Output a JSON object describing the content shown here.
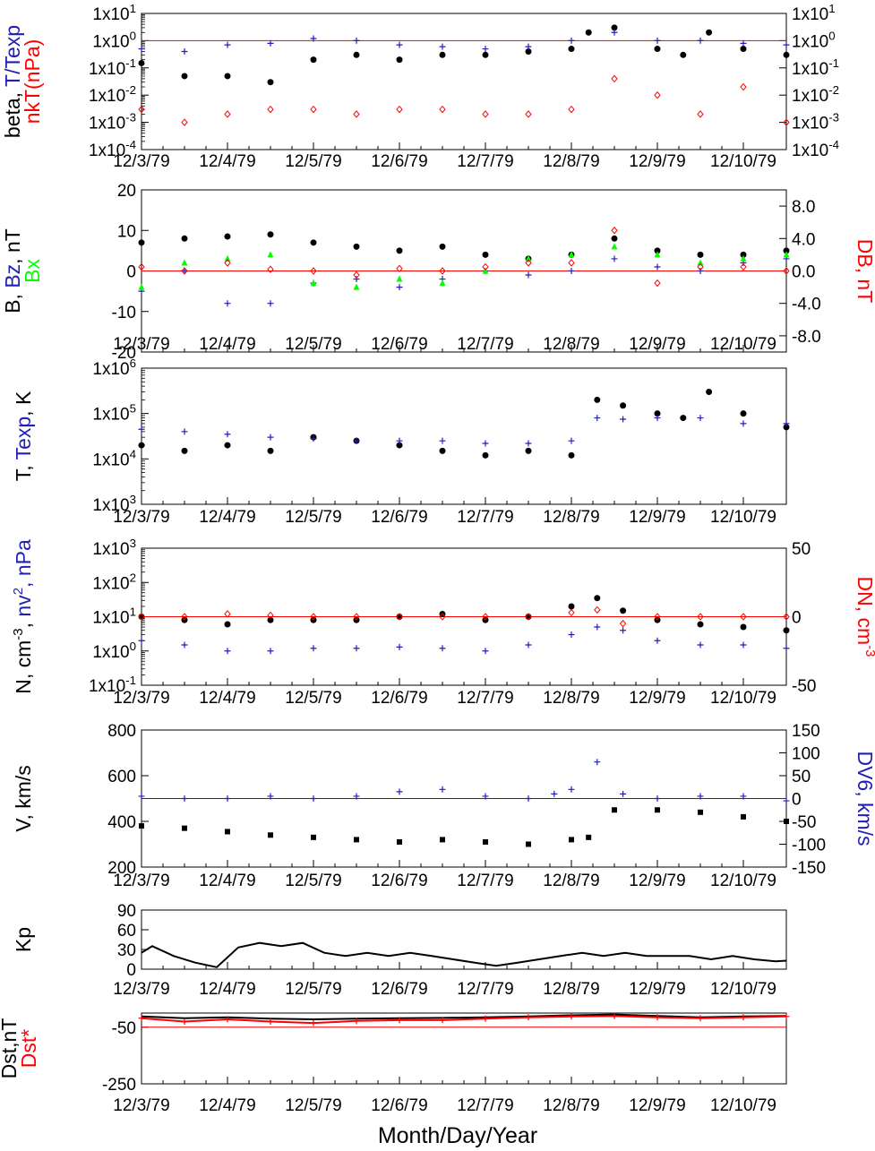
{
  "xaxis": {
    "ticks": [
      "12/3/79",
      "12/4/79",
      "12/5/79",
      "12/6/79",
      "12/7/79",
      "12/8/79",
      "12/9/79",
      "12/10/79"
    ],
    "label": "Month/Day/Year"
  },
  "colors": {
    "black": "#000000",
    "blue": "#1f1fb4",
    "red": "#ff0000",
    "green": "#00ff00"
  },
  "chart_data": [
    {
      "type": "scatter",
      "yscale": "log",
      "ylim": [
        0.0001,
        10
      ],
      "left_ticks": [
        "1x10^1",
        "1x10^0",
        "1x10^-1",
        "1x10^-2",
        "1x10^-3",
        "1x10^-4"
      ],
      "right_ticks": [
        "1x10^1",
        "1x10^0",
        "1x10^-1",
        "1x10^-2",
        "1x10^-3",
        "1x10^-4"
      ],
      "left_label": [
        {
          "text": "beta, ",
          "color": "black"
        },
        {
          "text": "T/Texp",
          "color": "blue"
        }
      ],
      "left_label2": [
        {
          "text": "nkT(nPa)",
          "color": "red"
        }
      ],
      "reference_line": {
        "y": 1,
        "color": "red"
      },
      "series": [
        {
          "marker": "dot",
          "color": "black",
          "x": [
            0,
            0.5,
            1,
            1.5,
            2,
            2.5,
            3,
            3.5,
            4,
            4.5,
            5,
            5.2,
            5.5,
            6,
            6.3,
            6.6,
            7,
            7.5
          ],
          "y": [
            0.15,
            0.05,
            0.05,
            0.03,
            0.2,
            0.3,
            0.2,
            0.3,
            0.3,
            0.4,
            0.5,
            2,
            3,
            0.5,
            0.3,
            2,
            0.5,
            0.3
          ]
        },
        {
          "marker": "plus",
          "color": "blue",
          "x": [
            0,
            0.5,
            1,
            1.5,
            2,
            2.5,
            3,
            3.5,
            4,
            4.5,
            5,
            5.5,
            6,
            6.5,
            7,
            7.5
          ],
          "y": [
            0.5,
            0.4,
            0.7,
            0.8,
            1.2,
            1,
            0.7,
            0.6,
            0.5,
            0.6,
            1,
            2,
            1,
            1,
            0.8,
            0.7
          ]
        },
        {
          "marker": "diamond",
          "color": "red",
          "x": [
            0,
            0.5,
            1,
            1.5,
            2,
            2.5,
            3,
            3.5,
            4,
            4.5,
            5,
            5.5,
            6,
            6.5,
            7,
            7.5
          ],
          "y": [
            0.003,
            0.001,
            0.002,
            0.003,
            0.003,
            0.002,
            0.003,
            0.003,
            0.002,
            0.002,
            0.003,
            0.04,
            0.01,
            0.002,
            0.02,
            0.001
          ]
        }
      ]
    },
    {
      "type": "scatter",
      "ylim": [
        -20,
        20
      ],
      "left_ticks": [
        "20",
        "10",
        "0",
        "-10",
        "-20"
      ],
      "right_ylim": [
        -10,
        10
      ],
      "right_ticks": [
        "8.0",
        "4.0",
        "0.0",
        "-4.0",
        "-8.0"
      ],
      "left_label": [
        {
          "text": "B, ",
          "color": "black"
        },
        {
          "text": "Bz",
          "color": "blue"
        },
        {
          "text": ", nT",
          "color": "black"
        }
      ],
      "left_label2": [
        {
          "text": "Bx",
          "color": "green"
        }
      ],
      "right_label": [
        {
          "text": "DB, nT",
          "color": "red"
        }
      ],
      "reference_line": {
        "y": 0,
        "color": "red"
      },
      "series": [
        {
          "marker": "dot",
          "color": "black",
          "x": [
            0,
            0.5,
            1,
            1.5,
            2,
            2.5,
            3,
            3.5,
            4,
            4.5,
            5,
            5.5,
            6,
            6.5,
            7,
            7.5
          ],
          "y": [
            7,
            8,
            8.5,
            9,
            7,
            6,
            5,
            6,
            4,
            3,
            4,
            8,
            5,
            4,
            4,
            5
          ]
        },
        {
          "marker": "plus",
          "color": "blue",
          "x": [
            0,
            0.5,
            1,
            1.5,
            2,
            2.5,
            3,
            3.5,
            4,
            4.5,
            5,
            5.5,
            6,
            6.5,
            7,
            7.5
          ],
          "y": [
            -5,
            0,
            -8,
            -8,
            -3,
            -2,
            -4,
            -2,
            0,
            -1,
            0,
            3,
            1,
            0,
            2,
            3
          ]
        },
        {
          "marker": "triangle",
          "color": "green",
          "x": [
            0,
            0.5,
            1,
            1.5,
            2,
            2.5,
            3,
            3.5,
            4,
            4.5,
            5,
            5.5,
            6,
            6.5,
            7,
            7.5
          ],
          "y": [
            -4,
            2,
            3,
            4,
            -3,
            -4,
            -2,
            -3,
            0,
            3,
            4,
            6,
            4,
            2,
            3,
            4
          ]
        },
        {
          "marker": "diamond",
          "color": "red",
          "x": [
            0,
            0.5,
            1,
            1.5,
            2,
            2.5,
            3,
            3.5,
            4,
            4.5,
            5,
            5.5,
            6,
            6.5,
            7,
            7.5
          ],
          "y": [
            0.5,
            0,
            1,
            0.2,
            0,
            -0.5,
            0.3,
            0,
            0.5,
            1,
            1,
            5,
            -1.5,
            0.5,
            0.5,
            0
          ]
        }
      ]
    },
    {
      "type": "scatter",
      "yscale": "log",
      "ylim": [
        1000,
        1000000
      ],
      "left_ticks": [
        "1x10^6",
        "1x10^5",
        "1x10^4",
        "1x10^3"
      ],
      "left_label": [
        {
          "text": "T, ",
          "color": "black"
        },
        {
          "text": "Texp",
          "color": "blue"
        },
        {
          "text": ", K",
          "color": "black"
        }
      ],
      "series": [
        {
          "marker": "dot",
          "color": "black",
          "x": [
            0,
            0.5,
            1,
            1.5,
            2,
            2.5,
            3,
            3.5,
            4,
            4.5,
            5,
            5.3,
            5.6,
            6,
            6.3,
            6.6,
            7,
            7.5
          ],
          "y": [
            20000,
            15000,
            20000,
            15000,
            30000,
            25000,
            20000,
            15000,
            12000,
            15000,
            12000,
            200000,
            150000,
            100000,
            80000,
            300000,
            100000,
            50000
          ]
        },
        {
          "marker": "plus",
          "color": "blue",
          "x": [
            0,
            0.5,
            1,
            1.5,
            2,
            2.5,
            3,
            3.5,
            4,
            4.5,
            5,
            5.3,
            5.6,
            6,
            6.5,
            7,
            7.5
          ],
          "y": [
            45000,
            40000,
            35000,
            30000,
            28000,
            25000,
            25000,
            25000,
            22000,
            22000,
            25000,
            80000,
            75000,
            80000,
            80000,
            60000,
            60000
          ]
        }
      ]
    },
    {
      "type": "scatter",
      "yscale": "log",
      "ylim": [
        0.1,
        1000
      ],
      "left_ticks": [
        "1x10^3",
        "1x10^2",
        "1x10^1",
        "1x10^0",
        "1x10^-1"
      ],
      "right_ylim": [
        -50,
        50
      ],
      "right_ticks": [
        "50",
        "0",
        "-50"
      ],
      "left_label": [
        {
          "text": "N, cm",
          "color": "black"
        },
        {
          "text": "-3",
          "color": "black",
          "sup": true
        },
        {
          "text": ", ",
          "color": "black"
        },
        {
          "text": "nv",
          "color": "blue"
        },
        {
          "text": "2",
          "color": "blue",
          "sup": true
        },
        {
          "text": ", nPa",
          "color": "blue"
        }
      ],
      "right_label": [
        {
          "text": "DN, cm",
          "color": "red"
        },
        {
          "text": "-3",
          "color": "red",
          "sup": true
        }
      ],
      "reference_line": {
        "y": 10,
        "color": "red"
      },
      "series": [
        {
          "marker": "dot",
          "color": "black",
          "x": [
            0,
            0.5,
            1,
            1.5,
            2,
            2.5,
            3,
            3.5,
            4,
            4.5,
            5,
            5.3,
            5.6,
            6,
            6.5,
            7,
            7.5
          ],
          "y": [
            10,
            8,
            6,
            8,
            8,
            8,
            10,
            12,
            8,
            10,
            20,
            35,
            15,
            8,
            6,
            5,
            4
          ]
        },
        {
          "marker": "plus",
          "color": "blue",
          "x": [
            0,
            0.5,
            1,
            1.5,
            2,
            2.5,
            3,
            3.5,
            4,
            4.5,
            5,
            5.3,
            5.6,
            6,
            6.5,
            7,
            7.5
          ],
          "y": [
            2,
            1.5,
            1,
            1,
            1.2,
            1.2,
            1.3,
            1.2,
            1,
            1.5,
            3,
            5,
            4,
            2,
            1.5,
            1.5,
            1.2
          ]
        },
        {
          "marker": "diamond",
          "color": "red",
          "x": [
            0,
            0.5,
            1,
            1.5,
            2,
            2.5,
            3,
            3.5,
            4,
            4.5,
            5,
            5.3,
            5.6,
            6,
            6.5,
            7,
            7.5
          ],
          "y": [
            0,
            0,
            2,
            1,
            0,
            0,
            0,
            0,
            0,
            0,
            3,
            5,
            -5,
            0,
            0,
            0,
            0
          ]
        }
      ]
    },
    {
      "type": "scatter",
      "ylim": [
        200,
        800
      ],
      "left_ticks": [
        "800",
        "600",
        "400",
        "200"
      ],
      "right_ylim": [
        -150,
        150
      ],
      "right_ticks": [
        "150",
        "100",
        "50",
        "0",
        "-50",
        "-100",
        "-150"
      ],
      "left_label": [
        {
          "text": "V, km/s",
          "color": "black"
        }
      ],
      "right_label": [
        {
          "text": "DV6, km/s",
          "color": "blue"
        }
      ],
      "reference_line": {
        "y": 500,
        "color": "blue"
      },
      "series": [
        {
          "marker": "square",
          "color": "black",
          "x": [
            0,
            0.5,
            1,
            1.5,
            2,
            2.5,
            3,
            3.5,
            4,
            4.5,
            5,
            5.2,
            5.5,
            6,
            6.5,
            7,
            7.5
          ],
          "y": [
            380,
            370,
            355,
            340,
            330,
            320,
            310,
            320,
            310,
            300,
            320,
            330,
            450,
            450,
            440,
            420,
            400
          ]
        },
        {
          "marker": "plus",
          "color": "blue",
          "x": [
            0,
            0.5,
            1,
            1.5,
            2,
            2.5,
            3,
            3.5,
            4,
            4.5,
            4.8,
            5,
            5.3,
            5.6,
            6,
            6.5,
            7,
            7.5
          ],
          "y": [
            5,
            0,
            0,
            5,
            0,
            5,
            15,
            20,
            5,
            0,
            10,
            20,
            80,
            10,
            0,
            5,
            5,
            -5
          ]
        }
      ]
    },
    {
      "type": "line",
      "ylim": [
        0,
        90
      ],
      "left_ticks": [
        "90",
        "60",
        "30",
        "0"
      ],
      "left_label": [
        {
          "text": "Kp",
          "color": "black"
        }
      ],
      "series": [
        {
          "color": "black",
          "x": [
            0,
            0.125,
            0.375,
            0.625,
            0.875,
            1.125,
            1.375,
            1.625,
            1.875,
            2.125,
            2.375,
            2.625,
            2.875,
            3.125,
            3.375,
            3.625,
            3.875,
            4.125,
            4.375,
            4.625,
            4.875,
            5.125,
            5.375,
            5.625,
            5.875,
            6.125,
            6.375,
            6.625,
            6.875,
            7.125,
            7.375,
            7.5
          ],
          "y": [
            25,
            35,
            20,
            10,
            3,
            33,
            40,
            35,
            40,
            25,
            20,
            25,
            20,
            25,
            20,
            15,
            10,
            5,
            10,
            15,
            20,
            25,
            20,
            25,
            20,
            20,
            20,
            15,
            20,
            15,
            12,
            13
          ]
        }
      ]
    },
    {
      "type": "line",
      "ylim": [
        -250,
        0
      ],
      "left_ticks": [
        "-50",
        "-250"
      ],
      "left_label": [
        {
          "text": "Dst,nT",
          "color": "black"
        }
      ],
      "left_label2": [
        {
          "text": "Dst*",
          "color": "red"
        }
      ],
      "reference_lines": [
        {
          "y": 0,
          "color": "black"
        },
        {
          "y": -50,
          "color": "red"
        }
      ],
      "series": [
        {
          "color": "black",
          "x": [
            0,
            0.5,
            1,
            1.5,
            2,
            2.5,
            3,
            3.5,
            4,
            4.5,
            5,
            5.5,
            6,
            6.5,
            7,
            7.5
          ],
          "y": [
            -12,
            -18,
            -15,
            -20,
            -22,
            -20,
            -18,
            -17,
            -15,
            -12,
            -8,
            -5,
            -10,
            -15,
            -12,
            -10
          ]
        },
        {
          "marker": "plus",
          "color": "red",
          "x": [
            0,
            0.5,
            1,
            1.5,
            2,
            2.5,
            3,
            3.5,
            4,
            4.5,
            5,
            5.5,
            6,
            6.5,
            7,
            7.5
          ],
          "y": [
            -18,
            -30,
            -22,
            -30,
            -35,
            -28,
            -25,
            -25,
            -20,
            -15,
            -12,
            -10,
            -15,
            -18,
            -15,
            -12
          ]
        }
      ]
    }
  ]
}
